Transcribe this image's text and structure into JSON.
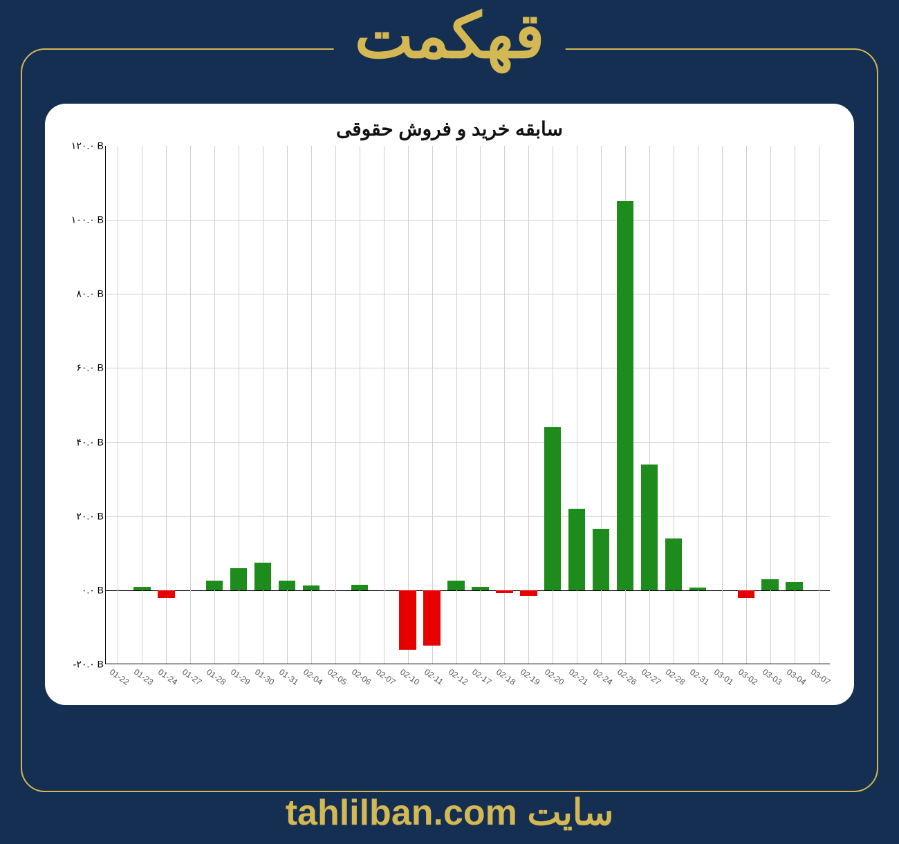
{
  "header": {
    "title": "قهکمت"
  },
  "footer": {
    "label": "سایت",
    "url": "tahlilban.com"
  },
  "colors": {
    "page_bg": "#142f51",
    "accent": "#d4b853",
    "card_bg": "#ffffff",
    "grid": "#d0d0d0",
    "axis": "#000000",
    "positive": "#1d8c1d",
    "negative": "#e60000",
    "text": "#111111"
  },
  "chart": {
    "type": "bar",
    "title": "سابقه خرید و فروش حقوقی",
    "title_fontsize": 28,
    "label_fontsize": 12,
    "ylim": [
      -20,
      120
    ],
    "ytick_step": 20,
    "y_suffix": " B",
    "y_ticks": [
      "۱۲۰.۰ B",
      "۱۰۰.۰ B",
      "۸۰.۰ B",
      "۶۰.۰ B",
      "۴۰.۰ B",
      "۲۰.۰ B",
      "۰.۰ B",
      "-۲۰.۰ B"
    ],
    "y_tick_values": [
      120,
      100,
      80,
      60,
      40,
      20,
      0,
      -20
    ],
    "categories": [
      "01-22",
      "01-23",
      "01-24",
      "01-27",
      "01-28",
      "01-29",
      "01-30",
      "01-31",
      "02-04",
      "02-05",
      "02-06",
      "02-07",
      "02-10",
      "02-11",
      "02-12",
      "02-17",
      "02-18",
      "02-19",
      "02-20",
      "02-21",
      "02-24",
      "02-26",
      "02-27",
      "02-28",
      "02-31",
      "03-01",
      "03-02",
      "03-03",
      "03-04",
      "03-07"
    ],
    "values": [
      0,
      1,
      -2,
      0,
      2.5,
      6,
      7.5,
      2.5,
      1.2,
      0,
      1.5,
      0,
      -16,
      -15,
      2.5,
      1,
      -0.8,
      -1.5,
      44,
      22,
      16.5,
      105,
      34,
      14,
      0.8,
      0,
      -2,
      3,
      2.2,
      0
    ],
    "bar_width": 0.7,
    "background_color": "#ffffff",
    "grid_color": "#d0d0d0"
  }
}
